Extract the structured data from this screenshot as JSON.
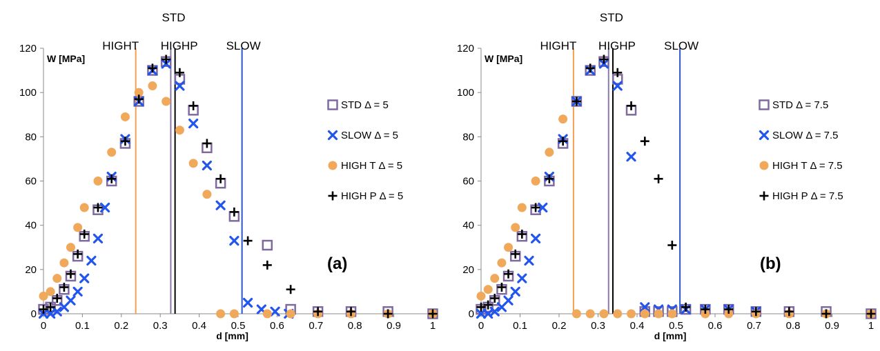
{
  "colors": {
    "std": "#7f6a9f",
    "slow": "#2255ee",
    "hight": "#f0a85a",
    "highp": "#000000",
    "hight_line": "#f0a050",
    "std_line": "#8a78a8",
    "highp_line": "#000000",
    "slow_line": "#2a55cc"
  },
  "chart_data": [
    {
      "type": "scatter",
      "panel_label": "(a)",
      "xlabel": "d [mm]",
      "ylabel": "W [MPa]",
      "xlim": [
        0,
        1
      ],
      "ylim": [
        0,
        120
      ],
      "xticks": [
        "0",
        "0.1",
        "0.2",
        "0.3",
        "0.4",
        "0.5",
        "0.6",
        "0.7",
        "0.8",
        "0.9",
        "1"
      ],
      "yticks": [
        "0",
        "20",
        "40",
        "60",
        "80",
        "100",
        "120"
      ],
      "grid": false,
      "legend": "right",
      "vlines": [
        {
          "label": "HIGHT",
          "x": 0.237,
          "color_key": "hight_line"
        },
        {
          "label": "STD",
          "x": 0.327,
          "color_key": "std_line"
        },
        {
          "label": "HIGHP",
          "x": 0.338,
          "color_key": "highp_line"
        },
        {
          "label": "SLOW",
          "x": 0.51,
          "color_key": "slow_line"
        }
      ],
      "series": [
        {
          "name": "STD Δ = 5",
          "marker": "square",
          "color_key": "std",
          "x": [
            0,
            0.018,
            0.035,
            0.053,
            0.07,
            0.088,
            0.105,
            0.14,
            0.175,
            0.21,
            0.245,
            0.28,
            0.315,
            0.35,
            0.385,
            0.42,
            0.455,
            0.49,
            0.575,
            0.635,
            0.705,
            0.79,
            0.885,
            1.0
          ],
          "y": [
            2,
            3,
            6,
            11,
            17,
            26,
            35,
            47,
            60,
            77,
            96,
            110,
            114,
            106,
            92,
            75,
            59,
            44,
            31,
            2,
            1,
            1,
            1,
            0
          ]
        },
        {
          "name": "SLOW Δ = 5",
          "marker": "x",
          "color_key": "slow",
          "x": [
            0,
            0.018,
            0.035,
            0.053,
            0.07,
            0.088,
            0.105,
            0.123,
            0.14,
            0.158,
            0.175,
            0.21,
            0.245,
            0.28,
            0.315,
            0.35,
            0.385,
            0.42,
            0.455,
            0.49,
            0.525,
            0.56,
            0.595,
            0.63
          ],
          "y": [
            0,
            0,
            1,
            3,
            6,
            10,
            16,
            24,
            34,
            48,
            62,
            79,
            96,
            110,
            113,
            103,
            86,
            67,
            49,
            33,
            5,
            2,
            1,
            0
          ]
        },
        {
          "name": "HIGH T Δ = 5",
          "marker": "circle",
          "color_key": "hight",
          "x": [
            0,
            0.018,
            0.035,
            0.053,
            0.07,
            0.088,
            0.105,
            0.14,
            0.175,
            0.21,
            0.245,
            0.28,
            0.315,
            0.35,
            0.385,
            0.42,
            0.455,
            0.49,
            0.575,
            0.635,
            0.705,
            0.79,
            0.885,
            1.0
          ],
          "y": [
            8,
            10,
            16,
            23,
            30,
            39,
            48,
            60,
            73,
            89,
            100,
            103,
            96,
            83,
            68,
            54,
            0,
            0,
            0,
            0,
            0,
            0,
            0,
            0
          ]
        },
        {
          "name": "HIGH P Δ = 5",
          "marker": "plus",
          "color_key": "highp",
          "x": [
            0,
            0.018,
            0.035,
            0.053,
            0.07,
            0.088,
            0.105,
            0.14,
            0.175,
            0.21,
            0.245,
            0.28,
            0.315,
            0.35,
            0.385,
            0.42,
            0.455,
            0.49,
            0.525,
            0.575,
            0.635,
            0.705,
            0.79,
            0.885,
            1.0
          ],
          "y": [
            2,
            3,
            7,
            12,
            18,
            27,
            36,
            48,
            61,
            78,
            97,
            111,
            115,
            109,
            94,
            77,
            61,
            46,
            33,
            22,
            11,
            1,
            1,
            0,
            0
          ]
        }
      ]
    },
    {
      "type": "scatter",
      "panel_label": "(b)",
      "xlabel": "d [mm]",
      "ylabel": "W [MPa]",
      "xlim": [
        0,
        1
      ],
      "ylim": [
        0,
        120
      ],
      "xticks": [
        "0",
        "0.1",
        "0.2",
        "0.3",
        "0.4",
        "0.5",
        "0.6",
        "0.7",
        "0.8",
        "0.9",
        "1"
      ],
      "yticks": [
        "0",
        "20",
        "40",
        "60",
        "80",
        "100",
        "120"
      ],
      "grid": false,
      "legend": "right",
      "vlines": [
        {
          "label": "HIGHT",
          "x": 0.237,
          "color_key": "hight_line"
        },
        {
          "label": "STD",
          "x": 0.327,
          "color_key": "std_line"
        },
        {
          "label": "HIGHP",
          "x": 0.338,
          "color_key": "highp_line"
        },
        {
          "label": "SLOW",
          "x": 0.51,
          "color_key": "slow_line"
        }
      ],
      "series": [
        {
          "name": "STD Δ = 7.5",
          "marker": "square",
          "color_key": "std",
          "x": [
            0,
            0.018,
            0.035,
            0.053,
            0.07,
            0.088,
            0.105,
            0.14,
            0.175,
            0.21,
            0.245,
            0.28,
            0.315,
            0.35,
            0.385,
            0.42,
            0.455,
            0.49,
            0.525,
            0.575,
            0.635,
            0.705,
            0.79,
            0.885,
            1.0
          ],
          "y": [
            2,
            3,
            6,
            11,
            17,
            26,
            35,
            47,
            60,
            77,
            96,
            110,
            114,
            106,
            92,
            1,
            1,
            1,
            2,
            2,
            2,
            1,
            1,
            1,
            0
          ]
        },
        {
          "name": "SLOW Δ = 7.5",
          "marker": "x",
          "color_key": "slow",
          "x": [
            0,
            0.018,
            0.035,
            0.053,
            0.07,
            0.088,
            0.105,
            0.123,
            0.14,
            0.158,
            0.175,
            0.21,
            0.245,
            0.28,
            0.315,
            0.35,
            0.385,
            0.42,
            0.455,
            0.49,
            0.525,
            0.575,
            0.635,
            0.705
          ],
          "y": [
            0,
            0,
            1,
            3,
            6,
            10,
            16,
            24,
            34,
            48,
            62,
            79,
            96,
            110,
            113,
            103,
            71,
            3,
            2,
            2,
            2,
            2,
            2,
            1
          ]
        },
        {
          "name": "HIGH T Δ = 7.5",
          "marker": "circle",
          "color_key": "hight",
          "x": [
            0,
            0.018,
            0.035,
            0.053,
            0.07,
            0.088,
            0.105,
            0.14,
            0.175,
            0.21,
            0.245,
            0.28,
            0.315,
            0.35,
            0.385,
            0.42,
            0.455,
            0.49,
            0.575,
            0.635,
            0.705,
            0.79,
            0.885,
            1.0
          ],
          "y": [
            8,
            11,
            16,
            23,
            30,
            39,
            48,
            60,
            73,
            88,
            0,
            0,
            0,
            0,
            0,
            0,
            0,
            0,
            0,
            0,
            0,
            0,
            0,
            0
          ]
        },
        {
          "name": "HIGH P Δ = 7.5",
          "marker": "plus",
          "color_key": "highp",
          "x": [
            0,
            0.018,
            0.035,
            0.053,
            0.07,
            0.088,
            0.105,
            0.14,
            0.175,
            0.21,
            0.245,
            0.28,
            0.315,
            0.35,
            0.385,
            0.42,
            0.455,
            0.49,
            0.525,
            0.575,
            0.635,
            0.705,
            0.79,
            0.885,
            1.0
          ],
          "y": [
            3,
            4,
            7,
            12,
            18,
            27,
            36,
            48,
            61,
            78,
            96,
            111,
            115,
            109,
            94,
            78,
            61,
            31,
            3,
            2,
            2,
            1,
            1,
            0,
            0
          ]
        }
      ]
    }
  ]
}
